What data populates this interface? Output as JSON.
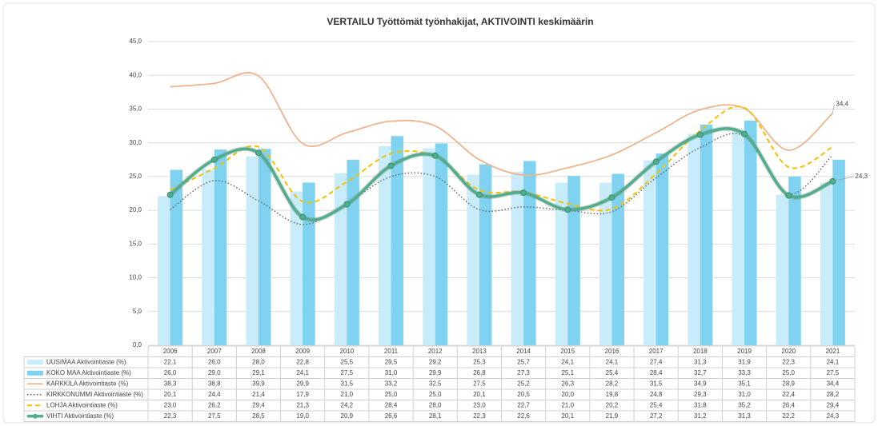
{
  "chart_data": {
    "type": "combo",
    "title": "VERTAILU  Työttömät työnhakijat, AKTIVOINTI keskimäärin",
    "categories": [
      "2006",
      "2007",
      "2008",
      "2009",
      "2010",
      "2011",
      "2012",
      "2013",
      "2014",
      "2015",
      "2016",
      "2017",
      "2018",
      "2019",
      "2020",
      "2021"
    ],
    "ylim": [
      0,
      45
    ],
    "yticks": [
      {
        "value": 0,
        "label": "0,0"
      },
      {
        "value": 5,
        "label": "5,0"
      },
      {
        "value": 10,
        "label": "10,0"
      },
      {
        "value": 15,
        "label": "15,0"
      },
      {
        "value": 20,
        "label": "20,0"
      },
      {
        "value": 25,
        "label": "25,0"
      },
      {
        "value": 30,
        "label": "30,0"
      },
      {
        "value": 35,
        "label": "35,0"
      },
      {
        "value": 40,
        "label": "40,0"
      },
      {
        "value": 45,
        "label": "45,0"
      }
    ],
    "grid": true,
    "series": [
      {
        "name": "UUSIMAA Aktivointiaste (%)",
        "kind": "bar",
        "color": "#c8ecf9",
        "values": [
          22.1,
          26.0,
          28.0,
          22.8,
          25.5,
          29.5,
          29.2,
          25.3,
          25.7,
          24.1,
          24.1,
          27.4,
          31.3,
          31.9,
          22.3,
          24.1
        ],
        "value_labels": [
          "22,1",
          "26,0",
          "28,0",
          "22,8",
          "25,5",
          "29,5",
          "29,2",
          "25,3",
          "25,7",
          "24,1",
          "24,1",
          "27,4",
          "31,3",
          "31,9",
          "22,3",
          "24,1"
        ]
      },
      {
        "name": "KOKO MAA Aktivointiaste (%)",
        "kind": "bar",
        "color": "#7fd2f0",
        "values": [
          26.0,
          29.0,
          29.1,
          24.1,
          27.5,
          31.0,
          29.9,
          26.8,
          27.3,
          25.1,
          25.4,
          28.4,
          32.7,
          33.3,
          25.0,
          27.5
        ],
        "value_labels": [
          "26,0",
          "29,0",
          "29,1",
          "24,1",
          "27,5",
          "31,0",
          "29,9",
          "26,8",
          "27,3",
          "25,1",
          "25,4",
          "28,4",
          "32,7",
          "33,3",
          "25,0",
          "27,5"
        ]
      },
      {
        "name": "KARKKILA Aktivointiaste (%)",
        "kind": "line",
        "dash": "solid",
        "color": "#f0b38c",
        "values": [
          38.3,
          38.8,
          39.9,
          29.9,
          31.5,
          33.2,
          32.5,
          27.5,
          25.2,
          26.3,
          28.2,
          31.5,
          34.9,
          35.1,
          28.9,
          34.4
        ],
        "value_labels": [
          "38,3",
          "38,8",
          "39,9",
          "29,9",
          "31,5",
          "33,2",
          "32,5",
          "27,5",
          "25,2",
          "26,3",
          "28,2",
          "31,5",
          "34,9",
          "35,1",
          "28,9",
          "34,4"
        ]
      },
      {
        "name": "KIRKKONUMMI Aktivointiaste (%)",
        "kind": "line",
        "dash": "dotted",
        "color": "#666666",
        "values": [
          20.1,
          24.4,
          21.4,
          17.9,
          21.0,
          25.0,
          25.0,
          20.1,
          20.5,
          20.0,
          19.8,
          24.8,
          29.3,
          31.0,
          22.4,
          28.2
        ],
        "value_labels": [
          "20,1",
          "24,4",
          "21,4",
          "17,9",
          "21,0",
          "25,0",
          "25,0",
          "20,1",
          "20,5",
          "20,0",
          "19,8",
          "24,8",
          "29,3",
          "31,0",
          "22,4",
          "28,2"
        ]
      },
      {
        "name": "LOHJA Aktivointiaste (%)",
        "kind": "line",
        "dash": "dashed",
        "color": "#f5c200",
        "values": [
          23.0,
          26.2,
          29.4,
          21.3,
          24.2,
          28.4,
          28.0,
          23.0,
          22.7,
          21.0,
          20.2,
          25.4,
          31.8,
          35.2,
          26.4,
          29.4
        ],
        "value_labels": [
          "23,0",
          "26,2",
          "29,4",
          "21,3",
          "24,2",
          "28,4",
          "28,0",
          "23,0",
          "22,7",
          "21,0",
          "20,2",
          "25,4",
          "31,8",
          "35,2",
          "26,4",
          "29,4"
        ]
      },
      {
        "name": "VIHTI Aktivointiaste (%)",
        "kind": "line",
        "dash": "thick",
        "color": "#4daf8c",
        "values": [
          22.3,
          27.5,
          28.5,
          19.0,
          20.9,
          26.6,
          28.1,
          22.3,
          22.6,
          20.1,
          21.9,
          27.2,
          31.2,
          31.3,
          22.2,
          24.3
        ],
        "value_labels": [
          "22,3",
          "27,5",
          "28,5",
          "19,0",
          "20,9",
          "26,6",
          "28,1",
          "22,3",
          "22,6",
          "20,1",
          "21,9",
          "27,2",
          "31,2",
          "31,3",
          "22,2",
          "24,3"
        ]
      }
    ]
  }
}
